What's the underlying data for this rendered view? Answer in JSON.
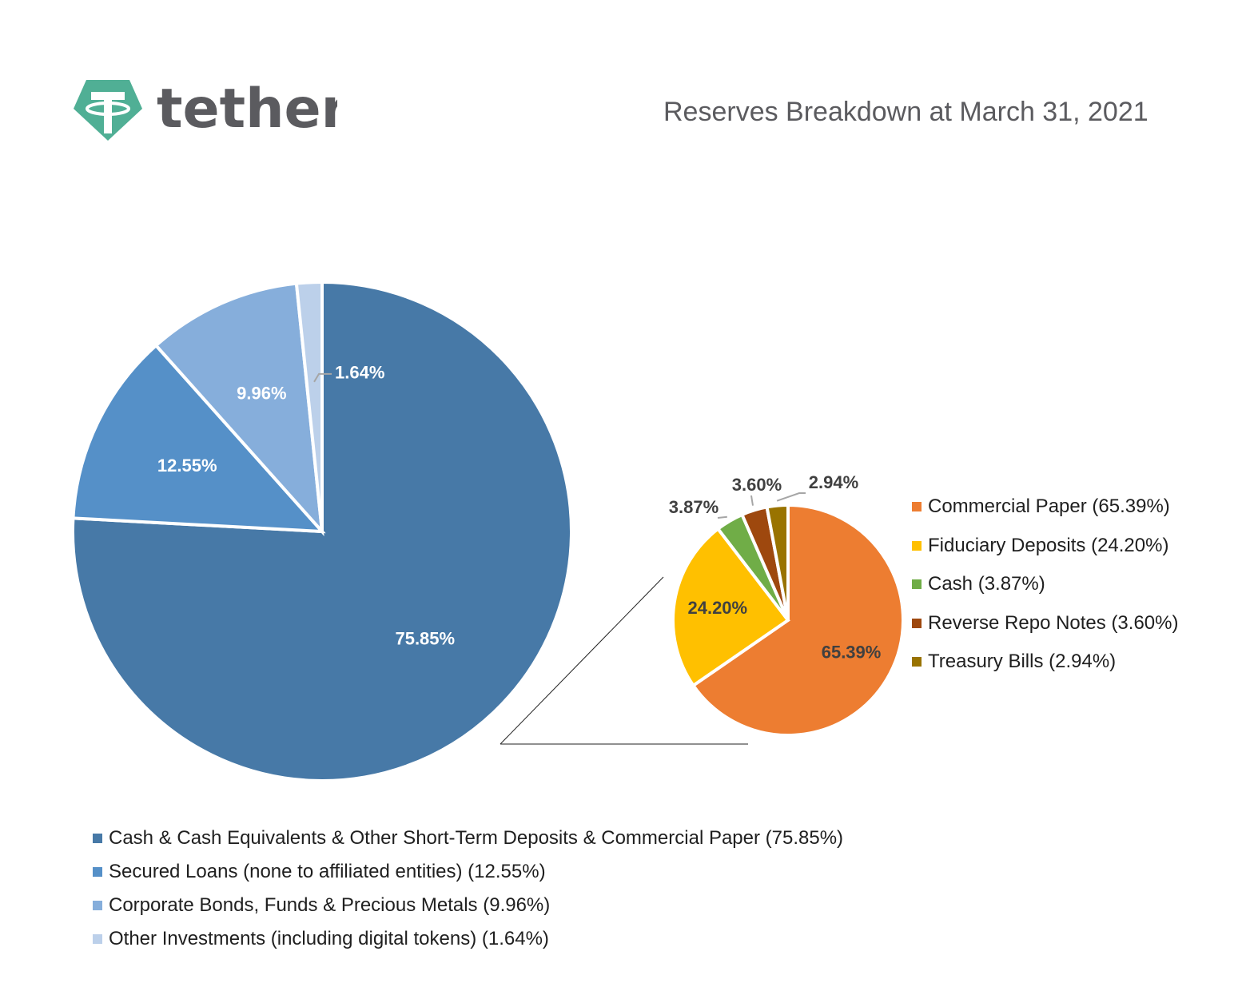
{
  "brand": {
    "name": "tether",
    "logo_color": "#50af95",
    "text_color": "#5b5b5f"
  },
  "title": "Reserves Breakdown at March 31, 2021",
  "chart_data": [
    {
      "type": "pie",
      "slices": [
        {
          "label": "Cash & Cash Equivalents & Other Short-Term Deposits & Commercial Paper (75.85%)",
          "value": 75.85,
          "data_label": "75.85%",
          "color": "#4779a7"
        },
        {
          "label": "Secured Loans (none to affiliated entities) (12.55%)",
          "value": 12.55,
          "data_label": "12.55%",
          "color": "#5590c8"
        },
        {
          "label": "Corporate Bonds, Funds & Precious Metals (9.96%)",
          "value": 9.96,
          "data_label": "9.96%",
          "color": "#86aedb"
        },
        {
          "label": "Other Investments (including digital tokens) (1.64%)",
          "value": 1.64,
          "data_label": "1.64%",
          "color": "#bcd0ea"
        }
      ],
      "legend_position": "bottom"
    },
    {
      "type": "pie",
      "slices": [
        {
          "label": "Commercial Paper (65.39%)",
          "value": 65.39,
          "data_label": "65.39%",
          "color": "#ed7d31"
        },
        {
          "label": "Fiduciary Deposits (24.20%)",
          "value": 24.2,
          "data_label": "24.20%",
          "color": "#ffc000"
        },
        {
          "label": "Cash (3.87%)",
          "value": 3.87,
          "data_label": "3.87%",
          "color": "#70ad47"
        },
        {
          "label": "Reverse Repo Notes (3.60%)",
          "value": 3.6,
          "data_label": "3.60%",
          "color": "#9e480e"
        },
        {
          "label": "Treasury Bills (2.94%)",
          "value": 2.94,
          "data_label": "2.94%",
          "color": "#997300"
        }
      ],
      "legend_position": "right"
    }
  ]
}
